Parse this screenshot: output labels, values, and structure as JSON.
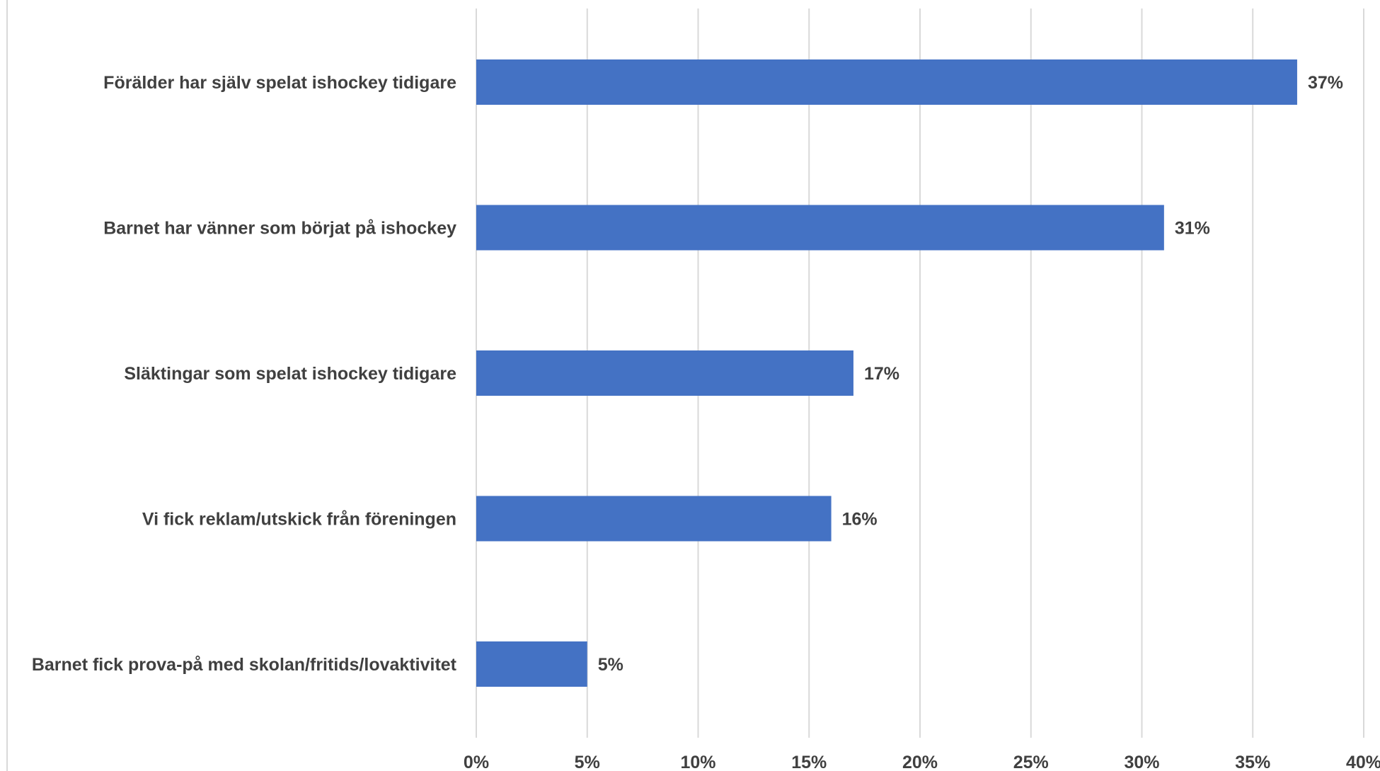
{
  "chart_data": {
    "type": "bar",
    "orientation": "horizontal",
    "categories": [
      "Förälder har själv spelat ishockey tidigare",
      "Barnet har vänner som börjat på ishockey",
      "Släktingar som spelat ishockey tidigare",
      "Vi fick reklam/utskick från föreningen",
      "Barnet fick prova-på med skolan/fritids/lovaktivitet"
    ],
    "values": [
      37,
      31,
      17,
      16,
      5
    ],
    "data_labels": [
      "37%",
      "31%",
      "17%",
      "16%",
      "5%"
    ],
    "xticks": [
      "0%",
      "5%",
      "10%",
      "15%",
      "20%",
      "25%",
      "30%",
      "35%",
      "40%"
    ],
    "xlim": [
      0,
      40
    ],
    "grid": "vertical",
    "title": "",
    "xlabel": "",
    "ylabel": "",
    "bar_color": "#4472C4",
    "grid_color": "#D9D9D9",
    "text_color": "#404040"
  }
}
